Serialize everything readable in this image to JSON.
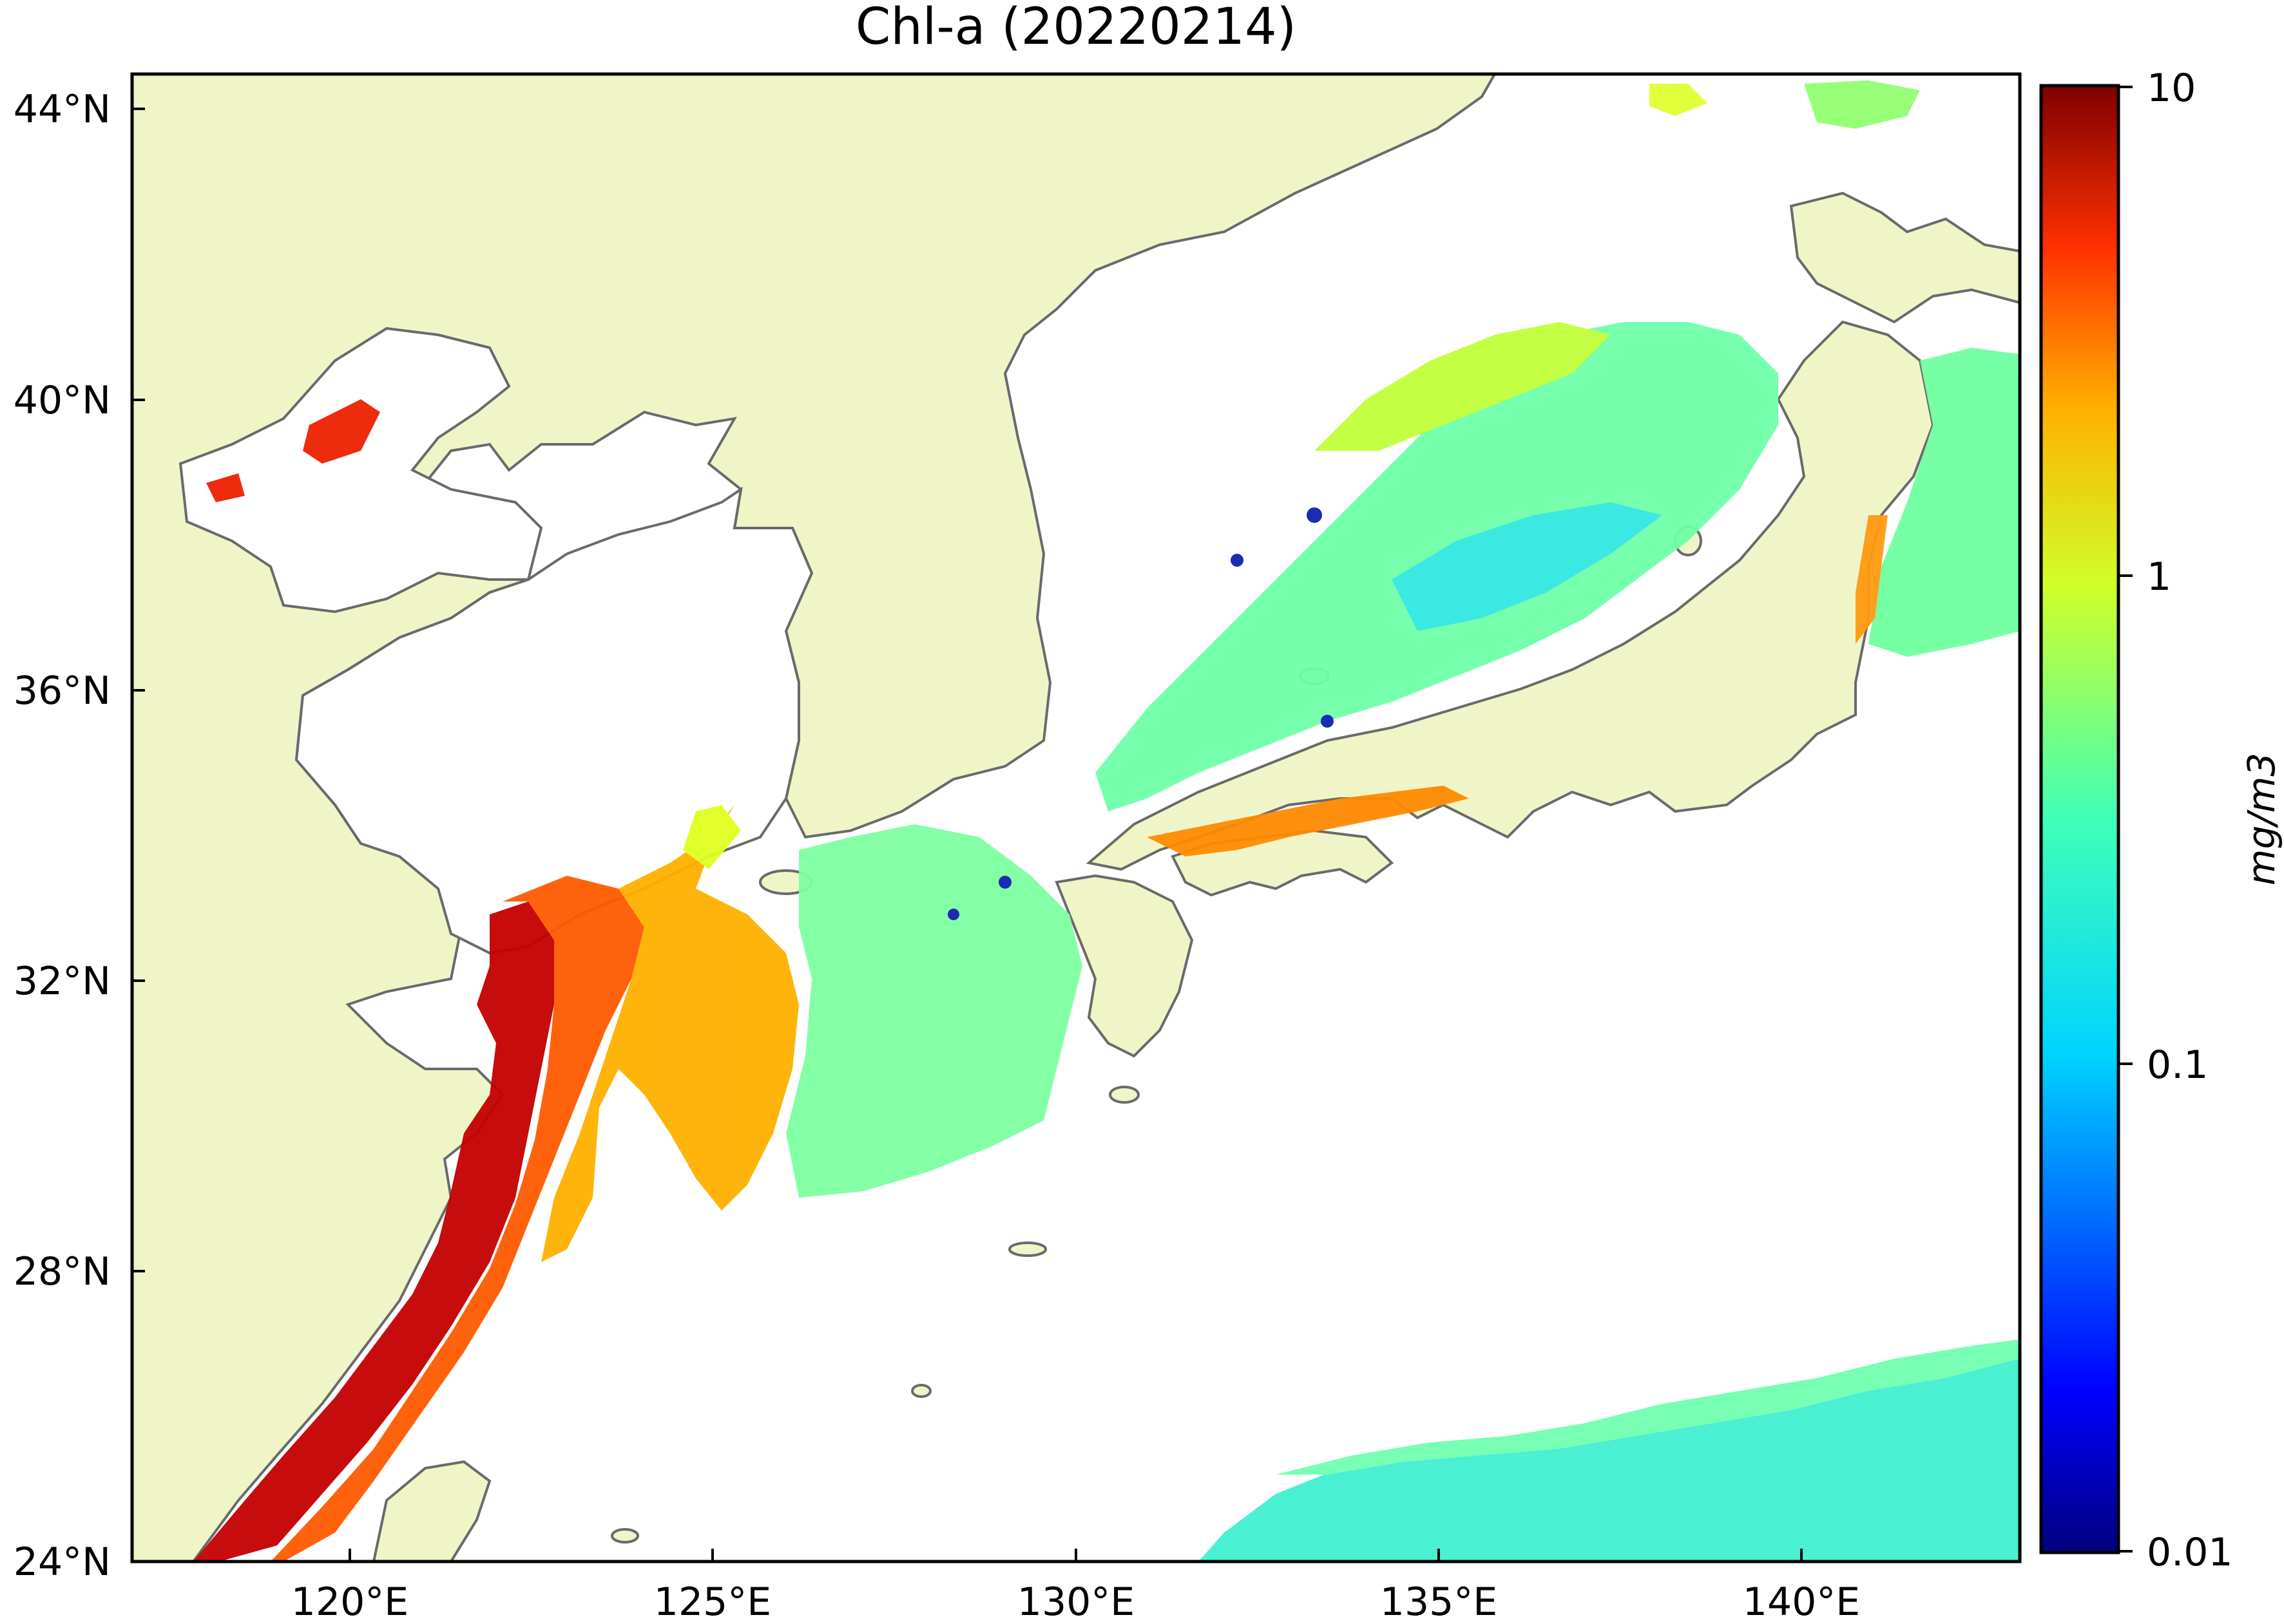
{
  "title": "Chl-a (20220214)",
  "map": {
    "lat_ticks": [
      "44°N",
      "40°N",
      "36°N",
      "32°N",
      "28°N",
      "24°N"
    ],
    "lon_ticks": [
      "120°E",
      "125°E",
      "130°E",
      "135°E",
      "140°E"
    ],
    "lat_range": [
      24,
      44.5
    ],
    "lon_range": [
      117,
      143
    ],
    "land_color": "#f0f5c8",
    "coast_color": "#6a6a6a",
    "no_data_color": "#ffffff"
  },
  "colorbar": {
    "ticks": [
      "10",
      "1",
      "0.1",
      "0.01"
    ],
    "unit_label": "mg/m3",
    "scale": "log",
    "range": [
      0.01,
      10
    ],
    "colormap": "jet"
  }
}
